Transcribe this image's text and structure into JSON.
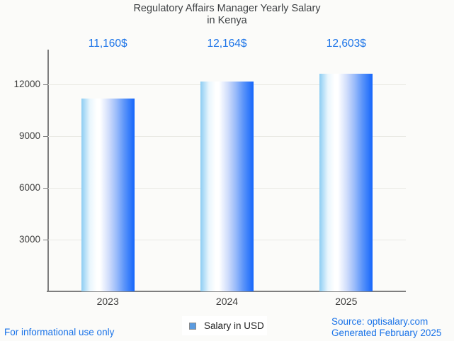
{
  "page": {
    "background": "#fbfbf9"
  },
  "title": {
    "line1": "Regulatory Affairs Manager Yearly Salary",
    "line2": "in Kenya"
  },
  "chart_data": {
    "type": "bar",
    "title": "Regulatory Affairs Manager Yearly Salary in Kenya",
    "categories": [
      "2023",
      "2024",
      "2025"
    ],
    "series": [
      {
        "name": "Salary in USD",
        "values": [
          11160,
          12164,
          12603
        ]
      }
    ],
    "value_labels": [
      "11,160$",
      "12,164$",
      "12,603$"
    ],
    "xlabel": "",
    "ylabel": "",
    "yticks": [
      3000,
      6000,
      9000,
      12000
    ],
    "ylim": [
      0,
      14000
    ],
    "grid": true,
    "legend_position": "bottom",
    "bar_gradient": [
      "#8ccdf3",
      "#ffffff",
      "#1566fb"
    ],
    "value_label_color": "#1a73e8",
    "axis_color": "#7e7e7e",
    "gridline_color": "#e9e9e4"
  },
  "legend": {
    "label": "Salary in USD",
    "marker_color": "#5a9be0"
  },
  "footer": {
    "left": "For informational use only",
    "source": "Source: optisalary.com",
    "generated": "Generated February 2025",
    "color": "#1a73e8"
  }
}
